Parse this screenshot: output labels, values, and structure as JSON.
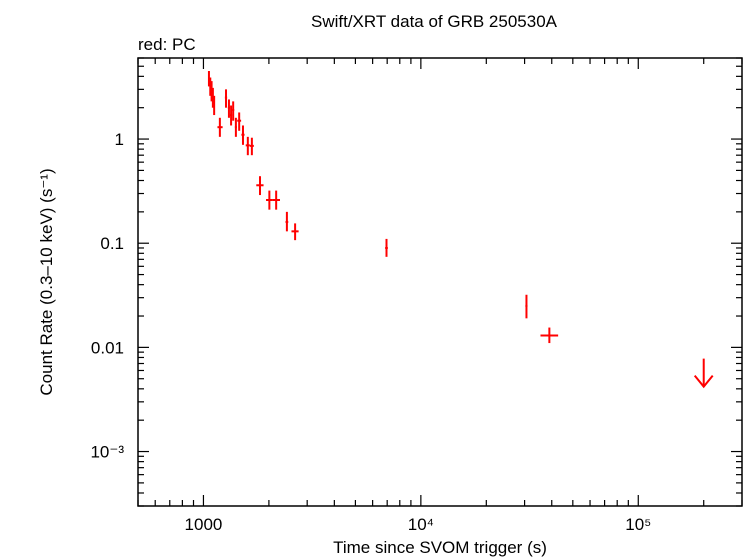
{
  "chart_data": {
    "type": "scatter",
    "title": "Swift/XRT data of GRB 250530A",
    "subtitle": "red: PC",
    "xlabel": "Time since SVOM trigger (s)",
    "ylabel": "Count Rate (0.3–10 keV) (s⁻¹)",
    "x_scale": "log",
    "y_scale": "log",
    "xlim": [
      500,
      300000
    ],
    "ylim": [
      0.0003,
      6
    ],
    "grid": false,
    "series_color": "#ff0000",
    "x_ticks": [
      {
        "value": 1000,
        "label": "1000"
      },
      {
        "value": 10000,
        "label": "10⁴"
      },
      {
        "value": 100000,
        "label": "10⁵"
      }
    ],
    "y_ticks": [
      {
        "value": 1,
        "label": "1"
      },
      {
        "value": 0.1,
        "label": "0.1"
      },
      {
        "value": 0.01,
        "label": "0.01"
      },
      {
        "value": 0.001,
        "label": "10⁻³"
      }
    ],
    "points": [
      {
        "x": 1060,
        "xlo": 1050,
        "xhi": 1070,
        "y": 3.8,
        "ylo": 3.2,
        "yhi": 4.5
      },
      {
        "x": 1075,
        "xlo": 1068,
        "xhi": 1082,
        "y": 3.2,
        "ylo": 2.6,
        "yhi": 3.9
      },
      {
        "x": 1090,
        "xlo": 1082,
        "xhi": 1098,
        "y": 2.9,
        "ylo": 2.3,
        "yhi": 3.6
      },
      {
        "x": 1105,
        "xlo": 1098,
        "xhi": 1112,
        "y": 2.5,
        "ylo": 2.0,
        "yhi": 3.1
      },
      {
        "x": 1120,
        "xlo": 1112,
        "xhi": 1128,
        "y": 2.1,
        "ylo": 1.7,
        "yhi": 2.6
      },
      {
        "x": 1190,
        "xlo": 1160,
        "xhi": 1225,
        "y": 1.3,
        "ylo": 1.05,
        "yhi": 1.6
      },
      {
        "x": 1270,
        "xlo": 1255,
        "xhi": 1285,
        "y": 2.5,
        "ylo": 2.0,
        "yhi": 3.0
      },
      {
        "x": 1310,
        "xlo": 1295,
        "xhi": 1325,
        "y": 2.0,
        "ylo": 1.6,
        "yhi": 2.4
      },
      {
        "x": 1340,
        "xlo": 1325,
        "xhi": 1355,
        "y": 1.7,
        "ylo": 1.35,
        "yhi": 2.1
      },
      {
        "x": 1370,
        "xlo": 1355,
        "xhi": 1385,
        "y": 1.9,
        "ylo": 1.5,
        "yhi": 2.3
      },
      {
        "x": 1410,
        "xlo": 1395,
        "xhi": 1425,
        "y": 1.3,
        "ylo": 1.05,
        "yhi": 1.6
      },
      {
        "x": 1460,
        "xlo": 1430,
        "xhi": 1490,
        "y": 1.5,
        "ylo": 1.2,
        "yhi": 1.8
      },
      {
        "x": 1520,
        "xlo": 1495,
        "xhi": 1545,
        "y": 1.1,
        "ylo": 0.88,
        "yhi": 1.35
      },
      {
        "x": 1600,
        "xlo": 1565,
        "xhi": 1635,
        "y": 0.87,
        "ylo": 0.7,
        "yhi": 1.05
      },
      {
        "x": 1670,
        "xlo": 1635,
        "xhi": 1705,
        "y": 0.86,
        "ylo": 0.7,
        "yhi": 1.03
      },
      {
        "x": 1820,
        "xlo": 1750,
        "xhi": 1890,
        "y": 0.36,
        "ylo": 0.29,
        "yhi": 0.44
      },
      {
        "x": 2010,
        "xlo": 1940,
        "xhi": 2080,
        "y": 0.26,
        "ylo": 0.21,
        "yhi": 0.32
      },
      {
        "x": 2160,
        "xlo": 2080,
        "xhi": 2250,
        "y": 0.26,
        "ylo": 0.21,
        "yhi": 0.32
      },
      {
        "x": 2420,
        "xlo": 2385,
        "xhi": 2455,
        "y": 0.16,
        "ylo": 0.13,
        "yhi": 0.2
      },
      {
        "x": 2640,
        "xlo": 2540,
        "xhi": 2740,
        "y": 0.13,
        "ylo": 0.107,
        "yhi": 0.155
      },
      {
        "x": 6950,
        "xlo": 6850,
        "xhi": 7050,
        "y": 0.09,
        "ylo": 0.074,
        "yhi": 0.11
      },
      {
        "x": 30600,
        "xlo": 30250,
        "xhi": 30950,
        "y": 0.025,
        "ylo": 0.019,
        "yhi": 0.032
      },
      {
        "x": 39000,
        "xlo": 35500,
        "xhi": 42800,
        "y": 0.013,
        "ylo": 0.011,
        "yhi": 0.0155
      }
    ],
    "upper_limits": [
      {
        "x": 200000,
        "y": 0.0078,
        "arrow_to": 0.0042
      }
    ]
  }
}
